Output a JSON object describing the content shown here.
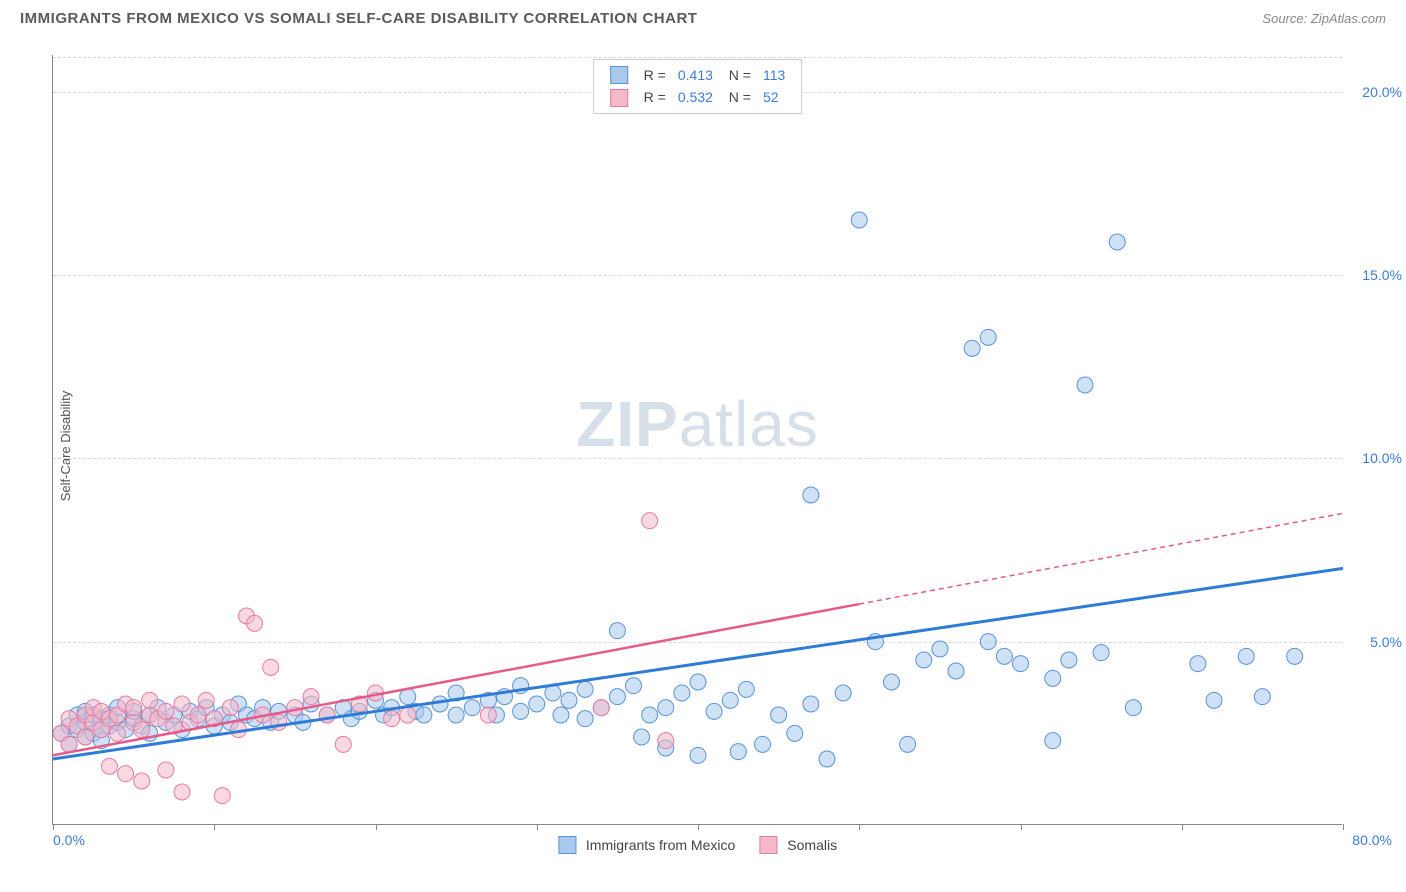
{
  "header": {
    "title": "IMMIGRANTS FROM MEXICO VS SOMALI SELF-CARE DISABILITY CORRELATION CHART",
    "source_label": "Source:",
    "source_value": "ZipAtlas.com"
  },
  "chart": {
    "type": "scatter",
    "y_axis_label": "Self-Care Disability",
    "x_range": [
      0,
      80
    ],
    "y_range": [
      0,
      21
    ],
    "x_tick_step": 10,
    "y_ticks": [
      5,
      10,
      15,
      20
    ],
    "y_tick_labels": [
      "5.0%",
      "10.0%",
      "15.0%",
      "20.0%"
    ],
    "x_left_label": "0.0%",
    "x_right_label": "80.0%",
    "grid_color": "#d8d8d8",
    "background": "#ffffff",
    "watermark": "ZIPatlas",
    "marker_radius": 8,
    "marker_opacity": 0.55,
    "series": [
      {
        "name": "Immigrants from Mexico",
        "R": "0.413",
        "N": "113",
        "fill": "#a8c8ec",
        "stroke": "#5a94d8",
        "line_color": "#2e7cd6",
        "line_dash": "none",
        "trend": {
          "x1": 0,
          "y1": 1.8,
          "x2": 80,
          "y2": 7.0
        },
        "points": [
          [
            0.5,
            2.5
          ],
          [
            1,
            2.7
          ],
          [
            1,
            2.2
          ],
          [
            1.5,
            2.6
          ],
          [
            1.5,
            3.0
          ],
          [
            2,
            2.8
          ],
          [
            2,
            2.4
          ],
          [
            2,
            3.1
          ],
          [
            2.5,
            2.5
          ],
          [
            2.5,
            3.0
          ],
          [
            3,
            2.9
          ],
          [
            3,
            2.3
          ],
          [
            3,
            2.6
          ],
          [
            3.5,
            3.0
          ],
          [
            3.5,
            2.7
          ],
          [
            4,
            2.8
          ],
          [
            4,
            3.2
          ],
          [
            4.5,
            2.6
          ],
          [
            5,
            2.9
          ],
          [
            5,
            3.1
          ],
          [
            5.5,
            2.7
          ],
          [
            6,
            3.0
          ],
          [
            6,
            2.5
          ],
          [
            6.5,
            3.2
          ],
          [
            7,
            2.8
          ],
          [
            7.5,
            3.0
          ],
          [
            8,
            2.6
          ],
          [
            8.5,
            3.1
          ],
          [
            9,
            2.9
          ],
          [
            9.5,
            3.2
          ],
          [
            10,
            2.7
          ],
          [
            10.5,
            3.0
          ],
          [
            11,
            2.8
          ],
          [
            11.5,
            3.3
          ],
          [
            12,
            3.0
          ],
          [
            12.5,
            2.9
          ],
          [
            13,
            3.2
          ],
          [
            13.5,
            2.8
          ],
          [
            14,
            3.1
          ],
          [
            15,
            3.0
          ],
          [
            15.5,
            2.8
          ],
          [
            16,
            3.3
          ],
          [
            17,
            3.0
          ],
          [
            18,
            3.2
          ],
          [
            18.5,
            2.9
          ],
          [
            19,
            3.1
          ],
          [
            20,
            3.4
          ],
          [
            20.5,
            3.0
          ],
          [
            21,
            3.2
          ],
          [
            22,
            3.5
          ],
          [
            22.5,
            3.1
          ],
          [
            23,
            3.0
          ],
          [
            24,
            3.3
          ],
          [
            25,
            3.6
          ],
          [
            25,
            3.0
          ],
          [
            26,
            3.2
          ],
          [
            27,
            3.4
          ],
          [
            27.5,
            3.0
          ],
          [
            28,
            3.5
          ],
          [
            29,
            3.8
          ],
          [
            29,
            3.1
          ],
          [
            30,
            3.3
          ],
          [
            31,
            3.6
          ],
          [
            31.5,
            3.0
          ],
          [
            32,
            3.4
          ],
          [
            33,
            3.7
          ],
          [
            33,
            2.9
          ],
          [
            34,
            3.2
          ],
          [
            35,
            3.5
          ],
          [
            35,
            5.3
          ],
          [
            36,
            3.8
          ],
          [
            36.5,
            2.4
          ],
          [
            37,
            3.0
          ],
          [
            38,
            3.2
          ],
          [
            38,
            2.1
          ],
          [
            39,
            3.6
          ],
          [
            40,
            3.9
          ],
          [
            40,
            1.9
          ],
          [
            41,
            3.1
          ],
          [
            42,
            3.4
          ],
          [
            42.5,
            2.0
          ],
          [
            43,
            3.7
          ],
          [
            44,
            2.2
          ],
          [
            45,
            3.0
          ],
          [
            46,
            2.5
          ],
          [
            47,
            3.3
          ],
          [
            47,
            9.0
          ],
          [
            48,
            1.8
          ],
          [
            49,
            3.6
          ],
          [
            50,
            16.5
          ],
          [
            51,
            5.0
          ],
          [
            52,
            3.9
          ],
          [
            53,
            2.2
          ],
          [
            54,
            4.5
          ],
          [
            55,
            4.8
          ],
          [
            56,
            4.2
          ],
          [
            57,
            13.0
          ],
          [
            58,
            5.0
          ],
          [
            58,
            13.3
          ],
          [
            59,
            4.6
          ],
          [
            60,
            4.4
          ],
          [
            62,
            4.0
          ],
          [
            62,
            2.3
          ],
          [
            63,
            4.5
          ],
          [
            64,
            12.0
          ],
          [
            65,
            4.7
          ],
          [
            66,
            15.9
          ],
          [
            67,
            3.2
          ],
          [
            71,
            4.4
          ],
          [
            72,
            3.4
          ],
          [
            74,
            4.6
          ],
          [
            75,
            3.5
          ],
          [
            77,
            4.6
          ]
        ]
      },
      {
        "name": "Somalis",
        "R": "0.532",
        "N": "52",
        "fill": "#f4b8c9",
        "stroke": "#e87ba0",
        "line_color": "#e65a8a",
        "line_dash": "solid_then_dash",
        "trend": {
          "x1": 0,
          "y1": 1.9,
          "x2": 80,
          "y2": 8.5,
          "solid_to_x": 50
        },
        "points": [
          [
            0.5,
            2.5
          ],
          [
            1,
            2.9
          ],
          [
            1,
            2.2
          ],
          [
            1.5,
            2.7
          ],
          [
            2,
            3.0
          ],
          [
            2,
            2.4
          ],
          [
            2.5,
            2.8
          ],
          [
            2.5,
            3.2
          ],
          [
            3,
            2.6
          ],
          [
            3,
            3.1
          ],
          [
            3.5,
            2.9
          ],
          [
            3.5,
            1.6
          ],
          [
            4,
            3.0
          ],
          [
            4,
            2.5
          ],
          [
            4.5,
            3.3
          ],
          [
            4.5,
            1.4
          ],
          [
            5,
            2.8
          ],
          [
            5,
            3.2
          ],
          [
            5.5,
            2.6
          ],
          [
            5.5,
            1.2
          ],
          [
            6,
            3.0
          ],
          [
            6,
            3.4
          ],
          [
            6.5,
            2.9
          ],
          [
            7,
            3.1
          ],
          [
            7,
            1.5
          ],
          [
            7.5,
            2.7
          ],
          [
            8,
            3.3
          ],
          [
            8,
            0.9
          ],
          [
            8.5,
            2.8
          ],
          [
            9,
            3.0
          ],
          [
            9.5,
            3.4
          ],
          [
            10,
            2.9
          ],
          [
            10.5,
            0.8
          ],
          [
            11,
            3.2
          ],
          [
            11.5,
            2.6
          ],
          [
            12,
            5.7
          ],
          [
            12.5,
            5.5
          ],
          [
            13,
            3.0
          ],
          [
            13.5,
            4.3
          ],
          [
            14,
            2.8
          ],
          [
            15,
            3.2
          ],
          [
            16,
            3.5
          ],
          [
            17,
            3.0
          ],
          [
            18,
            2.2
          ],
          [
            19,
            3.3
          ],
          [
            20,
            3.6
          ],
          [
            21,
            2.9
          ],
          [
            22,
            3.0
          ],
          [
            27,
            3.0
          ],
          [
            34,
            3.2
          ],
          [
            38,
            2.3
          ],
          [
            37,
            8.3
          ]
        ]
      }
    ],
    "legend_bottom": [
      {
        "label": "Immigrants from Mexico",
        "fill": "#a8c8ec",
        "stroke": "#5a94d8"
      },
      {
        "label": "Somalis",
        "fill": "#f4b8c9",
        "stroke": "#e87ba0"
      }
    ]
  }
}
